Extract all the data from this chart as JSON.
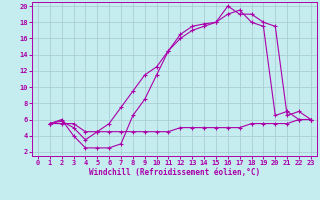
{
  "bg_color": "#c5ecee",
  "grid_color": "#a8c8d0",
  "line_color": "#aa00aa",
  "xlabel": "Windchill (Refroidissement éolien,°C)",
  "xlim_min": -0.5,
  "xlim_max": 23.5,
  "ylim_min": 1.5,
  "ylim_max": 20.5,
  "xticks": [
    0,
    1,
    2,
    3,
    4,
    5,
    6,
    7,
    8,
    9,
    10,
    11,
    12,
    13,
    14,
    15,
    16,
    17,
    18,
    19,
    20,
    21,
    22,
    23
  ],
  "yticks": [
    2,
    4,
    6,
    8,
    10,
    12,
    14,
    16,
    18,
    20
  ],
  "line1_x": [
    1,
    2,
    3,
    4,
    5,
    6,
    7,
    8,
    9,
    10,
    11,
    12,
    13,
    14,
    15,
    16,
    17,
    18,
    19,
    20,
    21,
    22,
    23
  ],
  "line1_y": [
    5.5,
    6.0,
    4.0,
    2.5,
    2.5,
    2.5,
    3.0,
    6.5,
    8.5,
    11.5,
    14.5,
    16.5,
    17.5,
    17.8,
    18.0,
    20.0,
    19.0,
    19.0,
    18.0,
    17.5,
    6.5,
    7.0,
    6.0
  ],
  "line2_x": [
    1,
    2,
    3,
    4,
    5,
    6,
    7,
    8,
    9,
    10,
    11,
    12,
    13,
    14,
    15,
    16,
    17,
    18,
    19,
    20,
    21,
    22,
    23
  ],
  "line2_y": [
    5.5,
    5.8,
    5.0,
    3.5,
    4.5,
    5.5,
    7.5,
    9.5,
    11.5,
    12.5,
    14.5,
    16.0,
    17.0,
    17.5,
    18.0,
    19.0,
    19.5,
    18.0,
    17.5,
    6.5,
    7.0,
    6.0,
    6.0
  ],
  "line3_x": [
    1,
    2,
    3,
    4,
    5,
    6,
    7,
    8,
    9,
    10,
    11,
    12,
    13,
    14,
    15,
    16,
    17,
    18,
    19,
    20,
    21,
    22,
    23
  ],
  "line3_y": [
    5.5,
    5.5,
    5.5,
    4.5,
    4.5,
    4.5,
    4.5,
    4.5,
    4.5,
    4.5,
    4.5,
    5.0,
    5.0,
    5.0,
    5.0,
    5.0,
    5.0,
    5.5,
    5.5,
    5.5,
    5.5,
    6.0,
    6.0
  ]
}
